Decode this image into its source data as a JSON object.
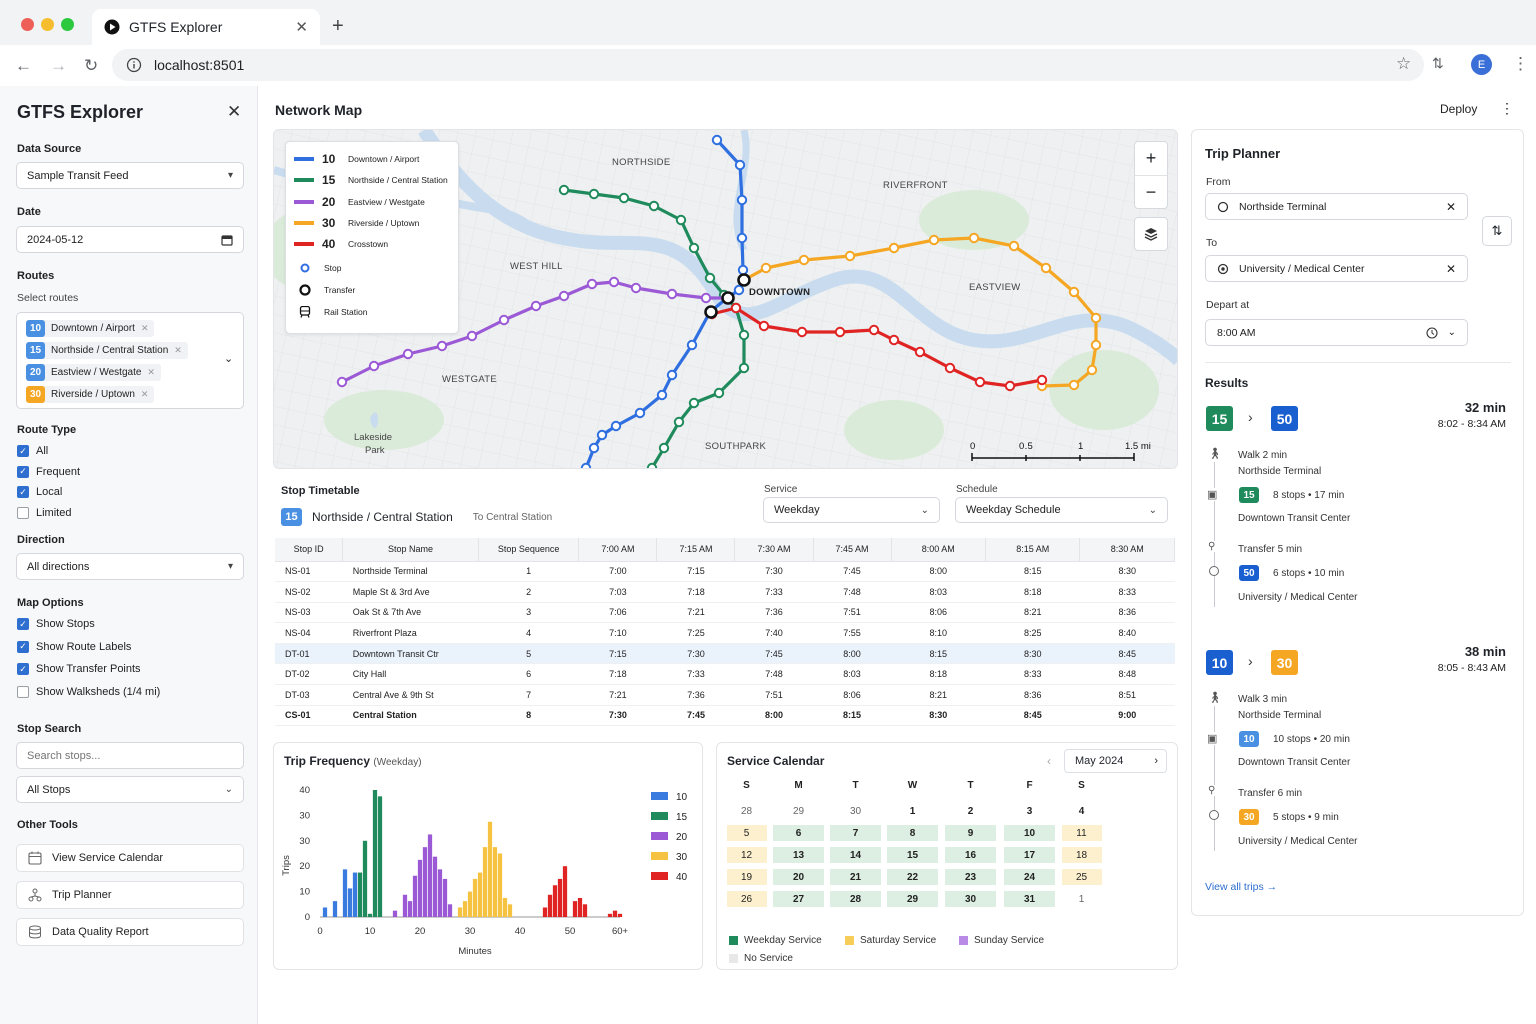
{
  "browser": {
    "tab_title": "GTFS Explorer",
    "url": "localhost:8501",
    "avatar_letter": "E"
  },
  "sidebar": {
    "title": "GTFS Explorer",
    "data_source_label": "Data Source",
    "data_source_value": "Sample Transit Feed",
    "date_label": "Date",
    "date_value": "2024-05-12",
    "routes_label": "Routes",
    "routes_sublabel": "Select routes",
    "route_chips": [
      {
        "num": "10",
        "name": "Downtown / Airport",
        "color": "#4a90e2"
      },
      {
        "num": "15",
        "name": "Northside / Central Station",
        "color": "#4a90e2"
      },
      {
        "num": "20",
        "name": "Eastview / Westgate",
        "color": "#4a90e2"
      },
      {
        "num": "30",
        "name": "Riverside / Uptown",
        "color": "#f5a623"
      }
    ],
    "route_type_label": "Route Type",
    "route_types": [
      {
        "label": "All",
        "checked": true
      },
      {
        "label": "Frequent",
        "checked": true
      },
      {
        "label": "Local",
        "checked": true
      },
      {
        "label": "Limited",
        "checked": false
      }
    ],
    "direction_label": "Direction",
    "direction_value": "All directions",
    "map_options_label": "Map Options",
    "map_options": [
      {
        "label": "Show Stops",
        "checked": true
      },
      {
        "label": "Show Route Labels",
        "checked": true
      },
      {
        "label": "Show Transfer Points",
        "checked": true
      },
      {
        "label": "Show Walksheds (1/4 mi)",
        "checked": false
      }
    ],
    "stop_search_label": "Stop Search",
    "stop_search_placeholder": "Search stops...",
    "stop_filter_value": "All Stops",
    "other_tools_label": "Other Tools",
    "tools": [
      "View Service Calendar",
      "Trip Planner",
      "Data Quality Report"
    ]
  },
  "header": {
    "title": "Network Map",
    "deploy": "Deploy"
  },
  "map": {
    "legend": [
      {
        "num": "10",
        "name": "Downtown / Airport",
        "color": "#2f6fe0"
      },
      {
        "num": "15",
        "name": "Northside / Central Station",
        "color": "#1f8a5b"
      },
      {
        "num": "20",
        "name": "Eastview / Westgate",
        "color": "#9b59d6"
      },
      {
        "num": "30",
        "name": "Riverside / Uptown",
        "color": "#f5a623"
      },
      {
        "num": "40",
        "name": "Crosstown",
        "color": "#e02424"
      }
    ],
    "symbols": [
      "Stop",
      "Transfer",
      "Rail Station"
    ],
    "places": {
      "northside": "NORTHSIDE",
      "riverfront": "RIVERFRONT",
      "west_hill": "WEST HILL",
      "downtown": "DOWNTOWN",
      "eastview": "EASTVIEW",
      "westgate": "WESTGATE",
      "southpark": "SOUTHPARK",
      "lakeside1": "Lakeside",
      "lakeside2": "Park"
    },
    "scale": [
      "0",
      "0.5",
      "1",
      "1.5 mi"
    ]
  },
  "timetable": {
    "title": "Stop Timetable",
    "route_num": "15",
    "route_name": "Northside / Central Station",
    "direction": "To Central Station",
    "service_label": "Service",
    "service_value": "Weekday",
    "schedule_label": "Schedule",
    "schedule_value": "Weekday Schedule",
    "columns": [
      "Stop ID",
      "Stop Name",
      "Stop Sequence",
      "7:00 AM",
      "7:15 AM",
      "7:30 AM",
      "7:45 AM",
      "8:00 AM",
      "8:15 AM",
      "8:30 AM"
    ],
    "rows": [
      [
        "NS-01",
        "Northside Terminal",
        "1",
        "7:00",
        "7:15",
        "7:30",
        "7:45",
        "8:00",
        "8:15",
        "8:30"
      ],
      [
        "NS-02",
        "Maple St & 3rd Ave",
        "2",
        "7:03",
        "7:18",
        "7:33",
        "7:48",
        "8:03",
        "8:18",
        "8:33"
      ],
      [
        "NS-03",
        "Oak St & 7th Ave",
        "3",
        "7:06",
        "7:21",
        "7:36",
        "7:51",
        "8:06",
        "8:21",
        "8:36"
      ],
      [
        "NS-04",
        "Riverfront Plaza",
        "4",
        "7:10",
        "7:25",
        "7:40",
        "7:55",
        "8:10",
        "8:25",
        "8:40"
      ],
      [
        "DT-01",
        "Downtown Transit Ctr",
        "5",
        "7:15",
        "7:30",
        "7:45",
        "8:00",
        "8:15",
        "8:30",
        "8:45"
      ],
      [
        "DT-02",
        "City Hall",
        "6",
        "7:18",
        "7:33",
        "7:48",
        "8:03",
        "8:18",
        "8:33",
        "8:48"
      ],
      [
        "DT-03",
        "Central Ave & 9th St",
        "7",
        "7:21",
        "7:36",
        "7:51",
        "8:06",
        "8:21",
        "8:36",
        "8:51"
      ],
      [
        "CS-01",
        "Central Station",
        "8",
        "7:30",
        "7:45",
        "8:00",
        "8:15",
        "8:30",
        "8:45",
        "9:00"
      ]
    ]
  },
  "chart_data": {
    "type": "bar",
    "title": "Trip Frequency",
    "subtitle": "(Weekday)",
    "xlabel": "Minutes",
    "ylabel": "Trips",
    "xticks": [
      "0",
      "10",
      "20",
      "30",
      "40",
      "50",
      "60+"
    ],
    "yticks": [
      "0",
      "10",
      "20",
      "30",
      "30",
      "40"
    ],
    "ylim": [
      0,
      40
    ],
    "series": [
      {
        "name": "10",
        "color": "#3a7be0",
        "x": [
          1,
          3,
          5,
          6,
          7
        ],
        "values": [
          3,
          5,
          15,
          9,
          14
        ]
      },
      {
        "name": "15",
        "color": "#1f8a5b",
        "x": [
          8,
          9,
          10,
          11,
          12
        ],
        "values": [
          14,
          24,
          1,
          40,
          38
        ]
      },
      {
        "name": "20",
        "color": "#9b59d6",
        "x": [
          15,
          17,
          18,
          19,
          20,
          21,
          22,
          23,
          24,
          25,
          26
        ],
        "values": [
          2,
          7,
          5,
          13,
          18,
          22,
          26,
          19,
          15,
          12,
          4
        ]
      },
      {
        "name": "30",
        "color": "#f5c242",
        "x": [
          28,
          29,
          30,
          31,
          32,
          33,
          34,
          35,
          36,
          37,
          38
        ],
        "values": [
          3,
          5,
          8,
          12,
          14,
          22,
          30,
          22,
          20,
          6,
          4
        ]
      },
      {
        "name": "40",
        "color": "#e02424",
        "x": [
          45,
          46,
          47,
          48,
          49,
          51,
          52,
          53,
          58,
          59,
          60
        ],
        "values": [
          3,
          7,
          10,
          12,
          16,
          5,
          6,
          4,
          1,
          2,
          1
        ]
      }
    ]
  },
  "calendar": {
    "title": "Service Calendar",
    "month": "May 2024",
    "dow": [
      "S",
      "M",
      "T",
      "W",
      "T",
      "F",
      "S"
    ],
    "weeks": [
      [
        "28",
        "29",
        "30",
        "1",
        "2",
        "3",
        "4"
      ],
      [
        "5",
        "6",
        "7",
        "8",
        "9",
        "10",
        "11"
      ],
      [
        "12",
        "13",
        "14",
        "15",
        "16",
        "17",
        "18"
      ],
      [
        "19",
        "20",
        "21",
        "22",
        "23",
        "24",
        "25"
      ],
      [
        "26",
        "27",
        "28",
        "29",
        "30",
        "31",
        "1"
      ]
    ],
    "types": [
      [
        "n",
        "n",
        "n",
        "n",
        "n",
        "n",
        "n"
      ],
      [
        "sat",
        "wk",
        "wk",
        "wk",
        "wk",
        "wk",
        "sat"
      ],
      [
        "sat",
        "wk",
        "wk",
        "wk",
        "wk",
        "wk",
        "sat"
      ],
      [
        "sat",
        "wk",
        "wk",
        "wk",
        "wk",
        "wk",
        "sat"
      ],
      [
        "sat",
        "wk",
        "wk",
        "wk",
        "wk",
        "wk",
        "n"
      ]
    ],
    "legend": [
      "Weekday Service",
      "Saturday Service",
      "Sunday Service",
      "No Service"
    ],
    "colors": {
      "wk": "#dcefe2",
      "sat": "#fcf0cf",
      "sun": "#ecdff8",
      "none": "#eeeeee"
    }
  },
  "trip_planner": {
    "title": "Trip Planner",
    "from_label": "From",
    "from_value": "Northside Terminal",
    "to_label": "To",
    "to_value": "University / Medical Center",
    "depart_label": "Depart at",
    "depart_value": "8:00 AM",
    "results_label": "Results",
    "results": [
      {
        "r1": "15",
        "r1c": "#1f8a5b",
        "r2": "50",
        "r2c": "#1a5fd0",
        "duration": "32 min",
        "times": "8:02 - 8:34 AM",
        "walk": "Walk 2 min",
        "origin": "Northside Terminal",
        "leg1_badge": "15",
        "leg1_badge_c": "#1f8a5b",
        "leg1": "8 stops  •  17 min",
        "stop1": "Downtown Transit Center",
        "transfer": "Transfer 5 min",
        "leg2_badge": "50",
        "leg2_badge_c": "#1a5fd0",
        "leg2": "6 stops  •  10 min",
        "dest": "University / Medical Center"
      },
      {
        "r1": "10",
        "r1c": "#1a5fd0",
        "r2": "30",
        "r2c": "#f5a623",
        "duration": "38 min",
        "times": "8:05 - 8:43 AM",
        "walk": "Walk 3 min",
        "origin": "Northside Terminal",
        "leg1_badge": "10",
        "leg1_badge_c": "#4a90e2",
        "leg1": "10 stops  •  20 min",
        "stop1": "Downtown Transit Center",
        "transfer": "Transfer 6 min",
        "leg2_badge": "30",
        "leg2_badge_c": "#f5a623",
        "leg2": "5 stops  •  9 min",
        "dest": "University / Medical Center"
      }
    ],
    "view_all": "View all trips"
  }
}
